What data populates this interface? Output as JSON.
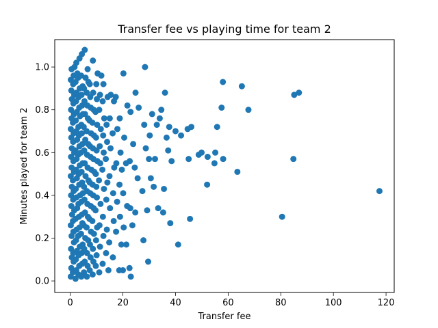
{
  "chart_data": {
    "type": "scatter",
    "title": "Transfer fee vs playing time for team 2",
    "xlabel": "Transfer fee",
    "ylabel": "Minutes played for team 2",
    "xlim": [
      -5.9,
      123.1
    ],
    "ylim": [
      -0.054,
      1.128
    ],
    "xticks": [
      0,
      20,
      40,
      60,
      80,
      100,
      120
    ],
    "xtick_labels": [
      "0",
      "20",
      "40",
      "60",
      "80",
      "100",
      "120"
    ],
    "yticks": [
      0.0,
      0.2,
      0.4,
      0.6,
      0.8,
      1.0
    ],
    "ytick_labels": [
      "0.0",
      "0.2",
      "0.4",
      "0.6",
      "0.8",
      "1.0"
    ],
    "grid": false,
    "legend": "none",
    "marker_color": "#1f77b4",
    "points": [
      [
        0.2,
        0.02
      ],
      [
        0.4,
        0.06
      ],
      [
        0.6,
        0.11
      ],
      [
        0.3,
        0.15
      ],
      [
        0.5,
        0.21
      ],
      [
        0.2,
        0.26
      ],
      [
        0.7,
        0.31
      ],
      [
        0.4,
        0.35
      ],
      [
        0.3,
        0.4
      ],
      [
        0.6,
        0.44
      ],
      [
        0.2,
        0.49
      ],
      [
        0.5,
        0.53
      ],
      [
        0.3,
        0.58
      ],
      [
        0.6,
        0.62
      ],
      [
        0.4,
        0.67
      ],
      [
        0.2,
        0.71
      ],
      [
        0.5,
        0.76
      ],
      [
        0.3,
        0.8
      ],
      [
        0.6,
        0.85
      ],
      [
        0.4,
        0.89
      ],
      [
        0.2,
        0.94
      ],
      [
        0.5,
        0.99
      ],
      [
        1.0,
        0.04
      ],
      [
        1.3,
        0.09
      ],
      [
        1.1,
        0.13
      ],
      [
        1.4,
        0.18
      ],
      [
        1.2,
        0.23
      ],
      [
        1.0,
        0.28
      ],
      [
        1.5,
        0.33
      ],
      [
        1.1,
        0.38
      ],
      [
        1.3,
        0.42
      ],
      [
        1.0,
        0.47
      ],
      [
        1.4,
        0.51
      ],
      [
        1.2,
        0.56
      ],
      [
        1.5,
        0.6
      ],
      [
        1.1,
        0.65
      ],
      [
        1.3,
        0.69
      ],
      [
        1.0,
        0.74
      ],
      [
        1.4,
        0.78
      ],
      [
        1.2,
        0.83
      ],
      [
        1.5,
        0.87
      ],
      [
        1.1,
        0.92
      ],
      [
        1.3,
        0.96
      ],
      [
        1.6,
        1.0
      ],
      [
        2.0,
        0.01
      ],
      [
        2.3,
        0.05
      ],
      [
        2.1,
        0.1
      ],
      [
        2.5,
        0.14
      ],
      [
        2.2,
        0.19
      ],
      [
        2.4,
        0.24
      ],
      [
        2.0,
        0.29
      ],
      [
        2.6,
        0.34
      ],
      [
        2.3,
        0.39
      ],
      [
        2.1,
        0.43
      ],
      [
        2.5,
        0.48
      ],
      [
        2.2,
        0.52
      ],
      [
        2.4,
        0.57
      ],
      [
        2.0,
        0.61
      ],
      [
        2.6,
        0.66
      ],
      [
        2.3,
        0.7
      ],
      [
        2.1,
        0.75
      ],
      [
        2.5,
        0.79
      ],
      [
        2.2,
        0.84
      ],
      [
        2.4,
        0.88
      ],
      [
        2.0,
        0.93
      ],
      [
        2.7,
        0.97
      ],
      [
        2.3,
        1.02
      ],
      [
        3.1,
        0.03
      ],
      [
        3.4,
        0.07
      ],
      [
        3.2,
        0.12
      ],
      [
        3.6,
        0.16
      ],
      [
        3.0,
        0.21
      ],
      [
        3.5,
        0.25
      ],
      [
        3.3,
        0.3
      ],
      [
        3.1,
        0.36
      ],
      [
        3.7,
        0.4
      ],
      [
        3.4,
        0.45
      ],
      [
        3.2,
        0.5
      ],
      [
        3.6,
        0.54
      ],
      [
        3.0,
        0.59
      ],
      [
        3.5,
        0.63
      ],
      [
        3.3,
        0.68
      ],
      [
        3.1,
        0.72
      ],
      [
        3.7,
        0.77
      ],
      [
        3.4,
        0.81
      ],
      [
        3.2,
        0.86
      ],
      [
        3.6,
        0.9
      ],
      [
        3.0,
        0.95
      ],
      [
        3.5,
        1.04
      ],
      [
        4.2,
        0.02
      ],
      [
        4.5,
        0.08
      ],
      [
        4.3,
        0.13
      ],
      [
        4.7,
        0.17
      ],
      [
        4.1,
        0.22
      ],
      [
        4.6,
        0.27
      ],
      [
        4.4,
        0.31
      ],
      [
        4.2,
        0.37
      ],
      [
        4.8,
        0.41
      ],
      [
        4.5,
        0.46
      ],
      [
        4.3,
        0.51
      ],
      [
        4.7,
        0.55
      ],
      [
        4.1,
        0.6
      ],
      [
        4.6,
        0.64
      ],
      [
        4.4,
        0.69
      ],
      [
        4.2,
        0.73
      ],
      [
        4.8,
        0.78
      ],
      [
        4.5,
        0.82
      ],
      [
        4.3,
        0.87
      ],
      [
        4.7,
        0.91
      ],
      [
        4.1,
        0.96
      ],
      [
        4.4,
        1.06
      ],
      [
        5.2,
        0.04
      ],
      [
        5.5,
        0.09
      ],
      [
        5.3,
        0.15
      ],
      [
        5.7,
        0.2
      ],
      [
        5.1,
        0.26
      ],
      [
        5.6,
        0.32
      ],
      [
        5.4,
        0.38
      ],
      [
        5.2,
        0.44
      ],
      [
        5.8,
        0.49
      ],
      [
        5.5,
        0.55
      ],
      [
        5.3,
        0.61
      ],
      [
        5.7,
        0.66
      ],
      [
        5.1,
        0.72
      ],
      [
        5.6,
        0.78
      ],
      [
        5.4,
        0.84
      ],
      [
        5.2,
        0.9
      ],
      [
        5.8,
        0.95
      ],
      [
        5.5,
        1.08
      ],
      [
        6.3,
        0.02
      ],
      [
        6.6,
        0.07
      ],
      [
        6.4,
        0.13
      ],
      [
        6.8,
        0.19
      ],
      [
        6.2,
        0.25
      ],
      [
        6.7,
        0.3
      ],
      [
        6.5,
        0.36
      ],
      [
        6.3,
        0.42
      ],
      [
        6.9,
        0.47
      ],
      [
        6.6,
        0.53
      ],
      [
        6.4,
        0.59
      ],
      [
        6.8,
        0.64
      ],
      [
        6.2,
        0.7
      ],
      [
        6.7,
        0.76
      ],
      [
        6.5,
        0.82
      ],
      [
        6.3,
        0.88
      ],
      [
        6.9,
        0.93
      ],
      [
        6.6,
        0.99
      ],
      [
        7.4,
        0.05
      ],
      [
        7.7,
        0.11
      ],
      [
        7.5,
        0.17
      ],
      [
        7.9,
        0.23
      ],
      [
        7.3,
        0.29
      ],
      [
        7.8,
        0.35
      ],
      [
        7.6,
        0.41
      ],
      [
        7.4,
        0.46
      ],
      [
        8.0,
        0.52
      ],
      [
        7.7,
        0.58
      ],
      [
        7.5,
        0.63
      ],
      [
        7.9,
        0.69
      ],
      [
        7.3,
        0.75
      ],
      [
        7.8,
        0.81
      ],
      [
        7.6,
        0.86
      ],
      [
        7.4,
        0.92
      ],
      [
        8.5,
        0.03
      ],
      [
        8.8,
        0.09
      ],
      [
        8.6,
        0.15
      ],
      [
        9.0,
        0.22
      ],
      [
        8.4,
        0.28
      ],
      [
        8.9,
        0.34
      ],
      [
        8.7,
        0.4
      ],
      [
        8.5,
        0.45
      ],
      [
        9.1,
        0.51
      ],
      [
        8.8,
        0.57
      ],
      [
        8.6,
        0.62
      ],
      [
        9.0,
        0.68
      ],
      [
        8.4,
        0.74
      ],
      [
        8.9,
        0.8
      ],
      [
        8.7,
        0.88
      ],
      [
        8.6,
        1.03
      ],
      [
        9.7,
        0.07
      ],
      [
        10.0,
        0.12
      ],
      [
        9.8,
        0.19
      ],
      [
        10.2,
        0.25
      ],
      [
        9.6,
        0.33
      ],
      [
        10.1,
        0.39
      ],
      [
        9.9,
        0.44
      ],
      [
        9.7,
        0.5
      ],
      [
        10.3,
        0.56
      ],
      [
        10.0,
        0.61
      ],
      [
        9.8,
        0.67
      ],
      [
        10.2,
        0.73
      ],
      [
        9.6,
        0.79
      ],
      [
        10.1,
        0.85
      ],
      [
        9.9,
        0.92
      ],
      [
        10.4,
        0.97
      ],
      [
        11.0,
        0.04
      ],
      [
        11.3,
        0.16
      ],
      [
        11.1,
        0.26
      ],
      [
        11.5,
        0.36
      ],
      [
        10.9,
        0.47
      ],
      [
        11.4,
        0.55
      ],
      [
        11.2,
        0.63
      ],
      [
        11.6,
        0.71
      ],
      [
        11.0,
        0.8
      ],
      [
        11.3,
        0.87
      ],
      [
        11.8,
        0.96
      ],
      [
        12.3,
        0.08
      ],
      [
        12.6,
        0.21
      ],
      [
        12.4,
        0.3
      ],
      [
        12.8,
        0.43
      ],
      [
        12.2,
        0.52
      ],
      [
        12.7,
        0.6
      ],
      [
        12.5,
        0.68
      ],
      [
        12.9,
        0.76
      ],
      [
        12.3,
        0.84
      ],
      [
        12.6,
        0.92
      ],
      [
        13.6,
        0.13
      ],
      [
        13.9,
        0.24
      ],
      [
        13.7,
        0.38
      ],
      [
        14.1,
        0.46
      ],
      [
        13.5,
        0.57
      ],
      [
        14.0,
        0.65
      ],
      [
        13.8,
        0.73
      ],
      [
        14.2,
        0.86
      ],
      [
        14.5,
        0.05
      ],
      [
        14.8,
        0.18
      ],
      [
        15.1,
        0.34
      ],
      [
        14.9,
        0.49
      ],
      [
        15.3,
        0.62
      ],
      [
        15.0,
        0.76
      ],
      [
        15.4,
        0.87
      ],
      [
        16.2,
        0.11
      ],
      [
        16.5,
        0.28
      ],
      [
        16.3,
        0.41
      ],
      [
        16.7,
        0.53
      ],
      [
        16.1,
        0.69
      ],
      [
        16.6,
        0.84
      ],
      [
        17.4,
        0.23
      ],
      [
        17.8,
        0.37
      ],
      [
        17.5,
        0.55
      ],
      [
        17.9,
        0.71
      ],
      [
        17.3,
        0.86
      ],
      [
        18.6,
        0.05
      ],
      [
        18.9,
        0.3
      ],
      [
        18.7,
        0.45
      ],
      [
        19.1,
        0.6
      ],
      [
        18.8,
        0.76
      ],
      [
        19.4,
        0.17
      ],
      [
        19.6,
        0.52
      ],
      [
        20.0,
        0.05
      ],
      [
        20.3,
        0.25
      ],
      [
        20.1,
        0.41
      ],
      [
        20.5,
        0.67
      ],
      [
        20.2,
        0.97
      ],
      [
        21.3,
        0.17
      ],
      [
        21.6,
        0.35
      ],
      [
        21.2,
        0.55
      ],
      [
        21.7,
        0.82
      ],
      [
        22.5,
        0.06
      ],
      [
        22.8,
        0.34
      ],
      [
        22.6,
        0.56
      ],
      [
        22.9,
        0.79
      ],
      [
        23.0,
        0.02
      ],
      [
        23.6,
        0.26
      ],
      [
        23.9,
        0.64
      ],
      [
        24.7,
        0.32
      ],
      [
        24.5,
        0.53
      ],
      [
        24.8,
        0.88
      ],
      [
        25.6,
        0.48
      ],
      [
        26.0,
        0.81
      ],
      [
        27.4,
        0.42
      ],
      [
        27.8,
        0.19
      ],
      [
        28.1,
        0.73
      ],
      [
        28.4,
        1.0
      ],
      [
        28.7,
        0.62
      ],
      [
        29.2,
        0.33
      ],
      [
        29.6,
        0.09
      ],
      [
        29.9,
        0.57
      ],
      [
        30.2,
        0.68
      ],
      [
        30.6,
        0.48
      ],
      [
        31.1,
        0.78
      ],
      [
        31.7,
        0.44
      ],
      [
        32.2,
        0.57
      ],
      [
        32.9,
        0.73
      ],
      [
        33.4,
        0.34
      ],
      [
        34.0,
        0.76
      ],
      [
        34.6,
        0.8
      ],
      [
        35.3,
        0.32
      ],
      [
        35.6,
        0.43
      ],
      [
        36.0,
        0.88
      ],
      [
        36.6,
        0.67
      ],
      [
        37.2,
        0.61
      ],
      [
        37.6,
        0.72
      ],
      [
        38.0,
        0.27
      ],
      [
        38.5,
        0.56
      ],
      [
        40.0,
        0.7
      ],
      [
        41.0,
        0.17
      ],
      [
        42.1,
        0.68
      ],
      [
        44.6,
        0.71
      ],
      [
        45.0,
        0.57
      ],
      [
        45.5,
        0.29
      ],
      [
        46.0,
        0.72
      ],
      [
        48.8,
        0.59
      ],
      [
        49.9,
        0.6
      ],
      [
        52.0,
        0.45
      ],
      [
        52.2,
        0.58
      ],
      [
        54.8,
        0.55
      ],
      [
        55.1,
        0.6
      ],
      [
        55.8,
        0.72
      ],
      [
        57.5,
        0.81
      ],
      [
        58.0,
        0.93
      ],
      [
        58.1,
        0.57
      ],
      [
        63.5,
        0.51
      ],
      [
        65.2,
        0.91
      ],
      [
        67.7,
        0.8
      ],
      [
        80.5,
        0.3
      ],
      [
        84.8,
        0.57
      ],
      [
        85.1,
        0.87
      ],
      [
        86.9,
        0.88
      ],
      [
        117.5,
        0.42
      ]
    ]
  }
}
